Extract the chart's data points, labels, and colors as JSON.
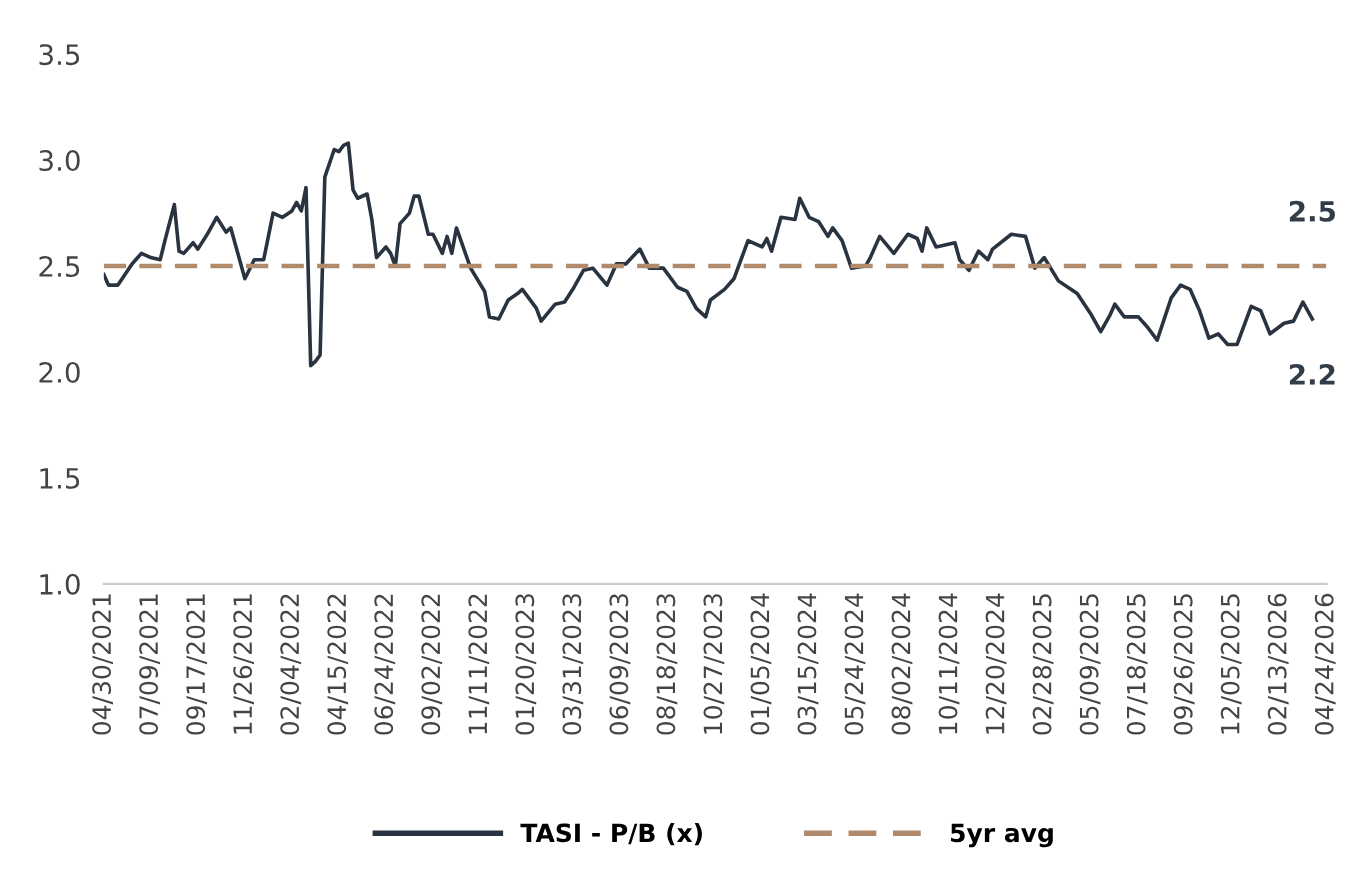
{
  "chart_data": {
    "type": "line",
    "x": [
      "2021-04-30",
      "2021-05-07",
      "2021-05-21",
      "2021-06-11",
      "2021-06-25",
      "2021-07-09",
      "2021-07-23",
      "2021-07-30",
      "2021-08-13",
      "2021-08-20",
      "2021-08-27",
      "2021-09-10",
      "2021-09-17",
      "2021-10-01",
      "2021-10-15",
      "2021-10-29",
      "2021-11-05",
      "2021-11-26",
      "2021-12-10",
      "2021-12-24",
      "2022-01-07",
      "2022-01-21",
      "2022-02-04",
      "2022-02-11",
      "2022-02-18",
      "2022-02-25",
      "2022-03-04",
      "2022-03-11",
      "2022-03-18",
      "2022-03-25",
      "2022-04-08",
      "2022-04-15",
      "2022-04-22",
      "2022-04-29",
      "2022-05-06",
      "2022-05-13",
      "2022-05-27",
      "2022-06-03",
      "2022-06-10",
      "2022-06-24",
      "2022-07-01",
      "2022-07-08",
      "2022-07-15",
      "2022-07-29",
      "2022-08-05",
      "2022-08-12",
      "2022-08-26",
      "2022-09-02",
      "2022-09-16",
      "2022-09-23",
      "2022-09-30",
      "2022-10-07",
      "2022-10-28",
      "2022-11-18",
      "2022-11-25",
      "2022-12-09",
      "2022-12-23",
      "2023-01-06",
      "2023-01-13",
      "2023-02-03",
      "2023-02-10",
      "2023-03-03",
      "2023-03-17",
      "2023-03-31",
      "2023-04-14",
      "2023-04-28",
      "2023-05-19",
      "2023-06-02",
      "2023-06-16",
      "2023-07-07",
      "2023-07-21",
      "2023-08-11",
      "2023-09-01",
      "2023-09-15",
      "2023-09-29",
      "2023-10-13",
      "2023-10-20",
      "2023-11-10",
      "2023-11-24",
      "2023-12-15",
      "2024-01-05",
      "2024-01-12",
      "2024-01-19",
      "2024-02-02",
      "2024-02-23",
      "2024-03-01",
      "2024-03-15",
      "2024-03-29",
      "2024-04-12",
      "2024-04-19",
      "2024-05-03",
      "2024-05-17",
      "2024-06-07",
      "2024-06-14",
      "2024-06-28",
      "2024-07-19",
      "2024-08-09",
      "2024-08-23",
      "2024-08-30",
      "2024-09-06",
      "2024-09-20",
      "2024-10-18",
      "2024-10-25",
      "2024-11-08",
      "2024-11-22",
      "2024-12-06",
      "2024-12-13",
      "2025-01-10",
      "2025-01-31",
      "2025-02-14",
      "2025-02-28",
      "2025-03-21",
      "2025-04-18",
      "2025-05-09",
      "2025-05-23",
      "2025-06-06",
      "2025-06-13",
      "2025-06-27",
      "2025-07-18",
      "2025-08-01",
      "2025-08-15",
      "2025-09-05",
      "2025-09-19",
      "2025-10-03",
      "2025-10-17",
      "2025-10-31",
      "2025-11-14",
      "2025-11-28",
      "2025-12-12",
      "2026-01-02",
      "2026-01-16",
      "2026-01-30",
      "2026-02-20",
      "2026-03-06",
      "2026-03-20",
      "2026-04-03"
    ],
    "series": [
      {
        "name": "TASI - P/B (x)",
        "color": "#2a3440",
        "values": [
          2.46,
          2.41,
          2.41,
          2.51,
          2.56,
          2.54,
          2.53,
          2.62,
          2.79,
          2.57,
          2.56,
          2.61,
          2.58,
          2.65,
          2.73,
          2.66,
          2.68,
          2.44,
          2.53,
          2.53,
          2.75,
          2.73,
          2.76,
          2.8,
          2.76,
          2.87,
          2.03,
          2.05,
          2.08,
          2.92,
          3.05,
          3.04,
          3.07,
          3.08,
          2.86,
          2.82,
          2.84,
          2.72,
          2.54,
          2.59,
          2.56,
          2.5,
          2.7,
          2.75,
          2.83,
          2.83,
          2.65,
          2.65,
          2.56,
          2.64,
          2.56,
          2.68,
          2.49,
          2.38,
          2.26,
          2.25,
          2.34,
          2.37,
          2.39,
          2.3,
          2.24,
          2.32,
          2.33,
          2.4,
          2.48,
          2.49,
          2.41,
          2.51,
          2.51,
          2.58,
          2.49,
          2.49,
          2.4,
          2.38,
          2.3,
          2.26,
          2.34,
          2.39,
          2.44,
          2.62,
          2.59,
          2.63,
          2.57,
          2.73,
          2.72,
          2.82,
          2.73,
          2.71,
          2.64,
          2.68,
          2.62,
          2.49,
          2.5,
          2.54,
          2.64,
          2.56,
          2.65,
          2.63,
          2.57,
          2.68,
          2.59,
          2.61,
          2.53,
          2.48,
          2.57,
          2.53,
          2.58,
          2.65,
          2.64,
          2.49,
          2.54,
          2.43,
          2.37,
          2.27,
          2.19,
          2.27,
          2.32,
          2.26,
          2.26,
          2.21,
          2.15,
          2.35,
          2.41,
          2.39,
          2.29,
          2.16,
          2.18,
          2.13,
          2.13,
          2.31,
          2.29,
          2.18,
          2.23,
          2.24,
          2.33,
          2.25
        ]
      }
    ],
    "ref_lines": [
      {
        "axis": "y",
        "value": 2.5,
        "label": "5yr avg",
        "color": "#b08a6a",
        "line_style": "dashed"
      }
    ],
    "annotations": [
      {
        "text": "2.5",
        "x": "2026-04-03",
        "y": 2.5
      },
      {
        "text": "2.2",
        "x": "2026-04-03",
        "y": 2.25
      }
    ],
    "xlim": [
      "2021-04-30",
      "2026-04-24"
    ],
    "xticks": [
      {
        "value": "2021-04-30",
        "label": "04/30/2021"
      },
      {
        "value": "2021-07-09",
        "label": "07/09/2021"
      },
      {
        "value": "2021-09-17",
        "label": "09/17/2021"
      },
      {
        "value": "2021-11-26",
        "label": "11/26/2021"
      },
      {
        "value": "2022-02-04",
        "label": "02/04/2022"
      },
      {
        "value": "2022-04-15",
        "label": "04/15/2022"
      },
      {
        "value": "2022-06-24",
        "label": "06/24/2022"
      },
      {
        "value": "2022-09-02",
        "label": "09/02/2022"
      },
      {
        "value": "2022-11-11",
        "label": "11/11/2022"
      },
      {
        "value": "2023-01-20",
        "label": "01/20/2023"
      },
      {
        "value": "2023-03-31",
        "label": "03/31/2023"
      },
      {
        "value": "2023-06-09",
        "label": "06/09/2023"
      },
      {
        "value": "2023-08-18",
        "label": "08/18/2023"
      },
      {
        "value": "2023-10-27",
        "label": "10/27/2023"
      },
      {
        "value": "2024-01-05",
        "label": "01/05/2024"
      },
      {
        "value": "2024-03-15",
        "label": "03/15/2024"
      },
      {
        "value": "2024-05-24",
        "label": "05/24/2024"
      },
      {
        "value": "2024-08-02",
        "label": "08/02/2024"
      },
      {
        "value": "2024-10-11",
        "label": "10/11/2024"
      },
      {
        "value": "2024-12-20",
        "label": "12/20/2024"
      },
      {
        "value": "2025-02-28",
        "label": "02/28/2025"
      },
      {
        "value": "2025-05-09",
        "label": "05/09/2025"
      },
      {
        "value": "2025-07-18",
        "label": "07/18/2025"
      },
      {
        "value": "2025-09-26",
        "label": "09/26/2025"
      },
      {
        "value": "2025-12-05",
        "label": "12/05/2025"
      },
      {
        "value": "2026-02-13",
        "label": "02/13/2026"
      },
      {
        "value": "2026-04-24",
        "label": "04/24/2026"
      }
    ],
    "ylim": [
      1.0,
      3.5
    ],
    "yticks": [
      {
        "value": 1.0,
        "label": "1.0"
      },
      {
        "value": 1.5,
        "label": "1.5"
      },
      {
        "value": 2.0,
        "label": "2.0"
      },
      {
        "value": 2.5,
        "label": "2.5"
      },
      {
        "value": 3.0,
        "label": "3.0"
      },
      {
        "value": 3.5,
        "label": "3.5"
      }
    ],
    "grid": false,
    "legend": "bottom",
    "line_style": "solid",
    "marker": "none"
  }
}
